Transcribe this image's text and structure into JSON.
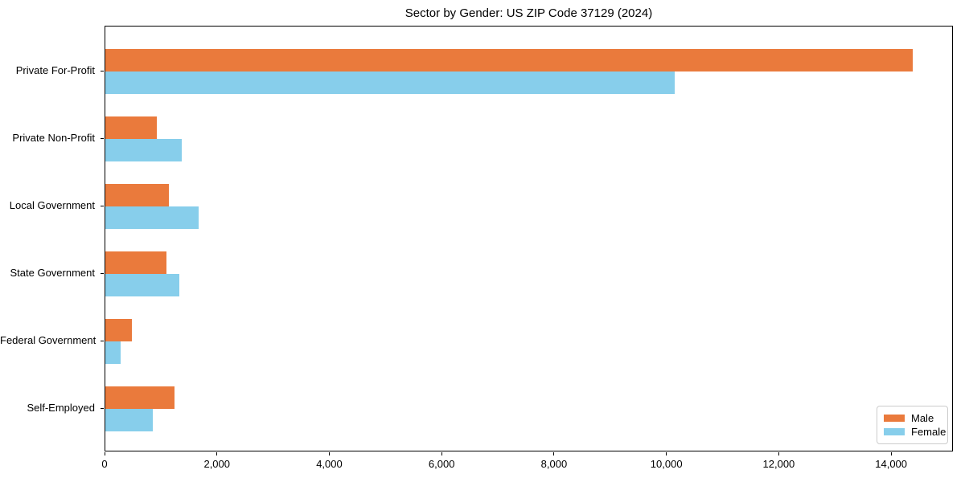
{
  "title": "Sector by Gender: US ZIP Code 37129 (2024)",
  "chart_data": {
    "type": "bar",
    "orientation": "horizontal",
    "title": "Sector by Gender: US ZIP Code 37129 (2024)",
    "categories": [
      "Private For-Profit",
      "Private Non-Profit",
      "Local Government",
      "State Government",
      "Federal Government",
      "Self-Employed"
    ],
    "series": [
      {
        "name": "Male",
        "color": "#ea7a3c",
        "values": [
          14400,
          920,
          1130,
          1090,
          470,
          1230
        ]
      },
      {
        "name": "Female",
        "color": "#87ceeb",
        "values": [
          10150,
          1360,
          1660,
          1320,
          270,
          845
        ]
      }
    ],
    "xlabel": "",
    "ylabel": "",
    "xlim": [
      0,
      15100
    ],
    "xticks": [
      0,
      2000,
      4000,
      6000,
      8000,
      10000,
      12000,
      14000
    ],
    "xtick_labels": [
      "0",
      "2,000",
      "4,000",
      "6,000",
      "8,000",
      "10,000",
      "12,000",
      "14,000"
    ],
    "grid": false,
    "legend_position": "lower right",
    "axis_color": "#000000",
    "background_color": "#ffffff"
  }
}
